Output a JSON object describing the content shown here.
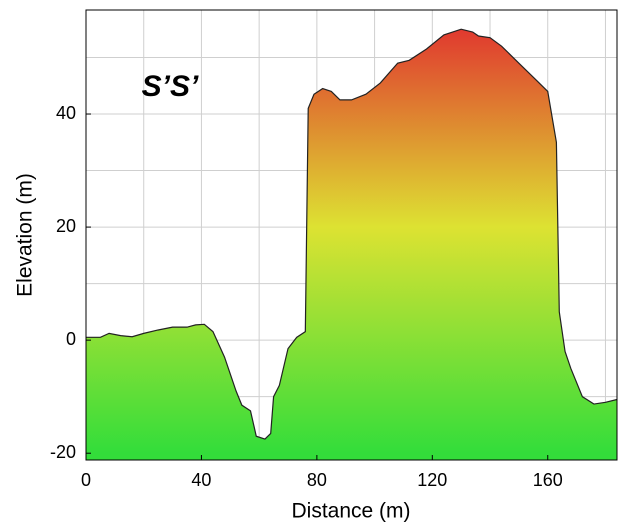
{
  "chart_data": {
    "type": "area",
    "annotation": "S’S’",
    "xlabel": "Distance (m)",
    "ylabel": "Elevation (m)",
    "x": [
      0,
      5,
      8,
      12,
      16,
      20,
      25,
      30,
      35,
      38,
      41,
      44,
      48,
      52,
      54,
      57,
      59,
      62,
      64,
      65,
      67,
      70,
      73,
      76,
      77,
      79,
      82,
      85,
      88,
      92,
      97,
      102,
      108,
      112,
      118,
      124,
      130,
      134,
      136,
      140,
      144,
      150,
      156,
      160,
      163,
      164,
      166,
      168,
      172,
      176,
      180,
      184
    ],
    "values": [
      0.5,
      0.5,
      1.2,
      0.8,
      0.6,
      1.2,
      1.8,
      2.3,
      2.3,
      2.7,
      2.8,
      1.5,
      -3,
      -9,
      -11.5,
      -12.5,
      -17,
      -17.5,
      -16.5,
      -10,
      -8,
      -1.5,
      0.5,
      1.5,
      41,
      43.5,
      44.5,
      44,
      42.5,
      42.5,
      43.5,
      45.5,
      49,
      49.5,
      51.5,
      54,
      55,
      54.5,
      53.8,
      53.5,
      52,
      49,
      46,
      44,
      35,
      5,
      -2,
      -5,
      -10,
      -11.3,
      -11,
      -10.5
    ],
    "colors": [
      "#33dd3a",
      "#dde232",
      "#e0392f"
    ],
    "color_stops": [
      -20,
      20,
      55
    ],
    "xlim": [
      0,
      184
    ],
    "ylim": [
      -21.2,
      58.4
    ],
    "xticks": [
      0,
      40,
      80,
      120,
      160
    ],
    "yticks": [
      -20,
      0,
      20,
      40
    ],
    "xgrid": [
      0,
      20,
      40,
      60,
      80,
      100,
      120,
      140,
      160,
      180
    ],
    "ygrid": [
      -20,
      -10,
      0,
      10,
      20,
      30,
      40,
      50
    ],
    "grid": true
  }
}
